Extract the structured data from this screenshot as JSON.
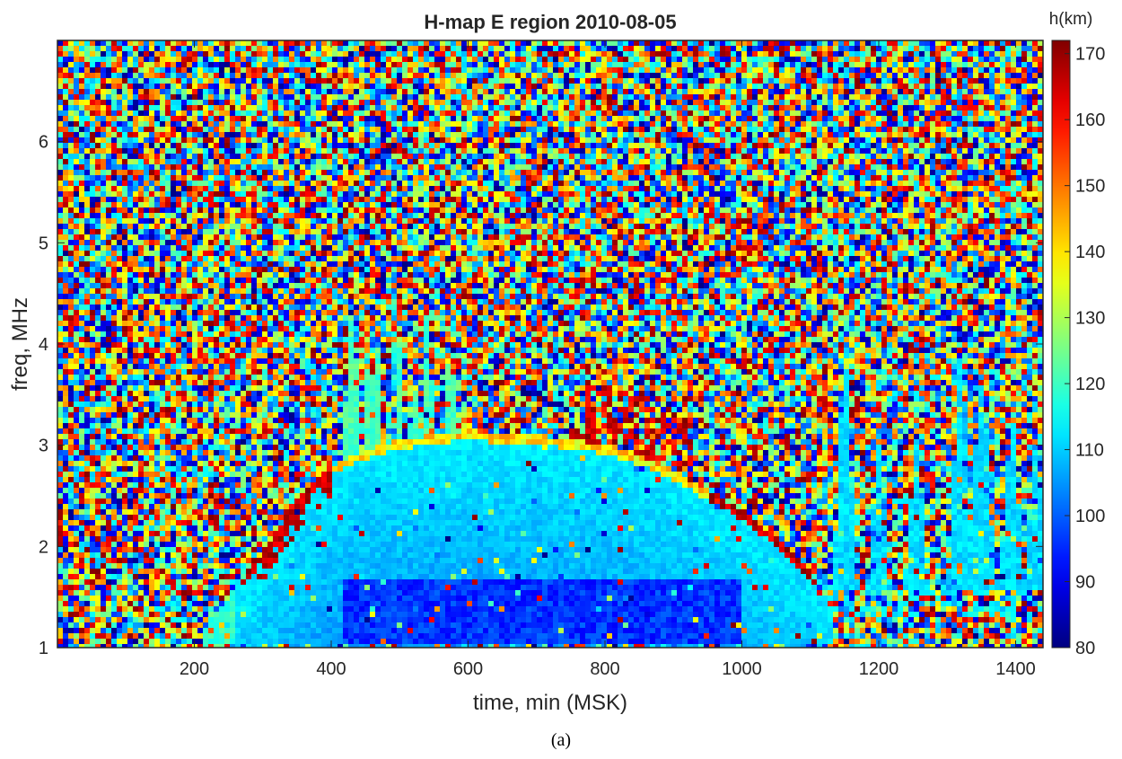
{
  "chart_data": {
    "type": "heatmap",
    "title": "H-map E region 2010-08-05",
    "xlabel": "time, min (MSK)",
    "ylabel": "freq, MHz",
    "xlim": [
      0,
      1440
    ],
    "ylim": [
      1,
      7
    ],
    "x_ticks": [
      "200",
      "400",
      "600",
      "800",
      "1000",
      "1200",
      "1400"
    ],
    "x_tick_values": [
      200,
      400,
      600,
      800,
      1000,
      1200,
      1400
    ],
    "y_ticks": [
      "1",
      "2",
      "3",
      "4",
      "5",
      "6"
    ],
    "y_tick_values": [
      1,
      2,
      3,
      4,
      5,
      6
    ],
    "colorbar": {
      "label": "h(km)",
      "range": [
        80,
        172
      ],
      "ticks": [
        "80",
        "90",
        "100",
        "110",
        "120",
        "130",
        "140",
        "150",
        "160",
        "170"
      ],
      "tick_values": [
        80,
        90,
        100,
        110,
        120,
        130,
        140,
        150,
        160,
        170
      ],
      "colormap": "jet"
    },
    "grid": false,
    "background": "random noise (heights uniformly 80-172 km)",
    "regions": [
      {
        "name": "E-layer echo envelope (upper edge, top of reflection region)",
        "x": [
          215,
          250,
          300,
          350,
          400,
          450,
          500,
          550,
          600,
          650,
          700,
          750,
          800,
          850,
          900,
          950,
          1000,
          1050,
          1100,
          1130
        ],
        "y_top": [
          1.2,
          1.5,
          1.95,
          2.45,
          2.8,
          2.95,
          3.05,
          3.1,
          3.15,
          3.1,
          3.1,
          3.05,
          3.0,
          2.9,
          2.75,
          2.55,
          2.35,
          2.1,
          1.75,
          1.4
        ],
        "height_km": 112
      },
      {
        "name": "Deep blue core (lowest heights)",
        "x": [
          420,
          1000
        ],
        "y": [
          1.05,
          1.65
        ],
        "height_km": 95
      },
      {
        "name": "Sporadic E spikes",
        "x": [
          400,
          600
        ],
        "y_max": 4.3,
        "height_km": 120
      },
      {
        "name": "Evening sporadic E columns",
        "x": [
          1140,
          1440
        ],
        "y": [
          1.55,
          3.9
        ],
        "height_km": 112
      },
      {
        "name": "Red high-height traces near upper edge",
        "x": [
          280,
          1110
        ],
        "height_km": 165
      }
    ]
  },
  "caption": "(a)"
}
